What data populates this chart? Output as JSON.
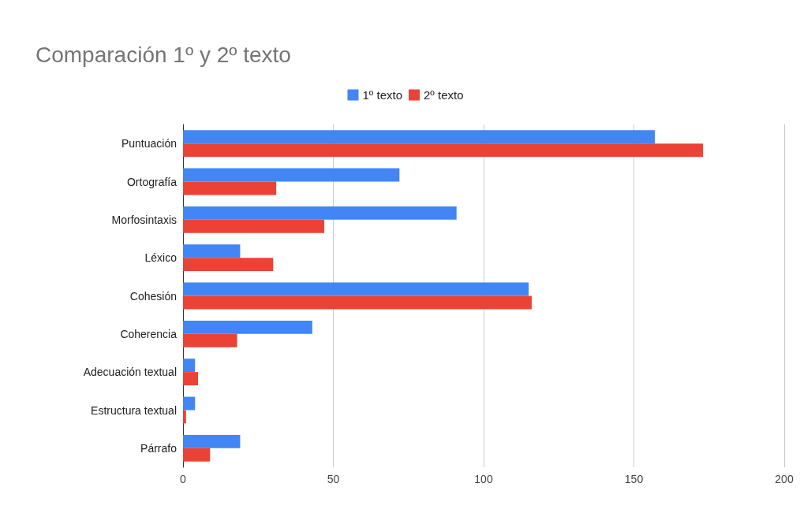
{
  "chart_data": {
    "type": "bar",
    "orientation": "horizontal",
    "title": "Comparación 1º y 2º texto",
    "categories": [
      "Puntuación",
      "Ortografía",
      "Morfosintaxis",
      "Léxico",
      "Cohesión",
      "Coherencia",
      "Adecuación textual",
      "Estructura textual",
      "Párrafo"
    ],
    "series": [
      {
        "name": "1º texto",
        "color": "#4285f4",
        "values": [
          157,
          72,
          91,
          19,
          115,
          43,
          4,
          4,
          19
        ]
      },
      {
        "name": "2º texto",
        "color": "#ea4335",
        "values": [
          173,
          31,
          47,
          30,
          116,
          18,
          5,
          1,
          9
        ]
      }
    ],
    "xlim": [
      0,
      200
    ],
    "xticks": [
      0,
      50,
      100,
      150,
      200
    ],
    "grid": "x",
    "legend": "top"
  }
}
